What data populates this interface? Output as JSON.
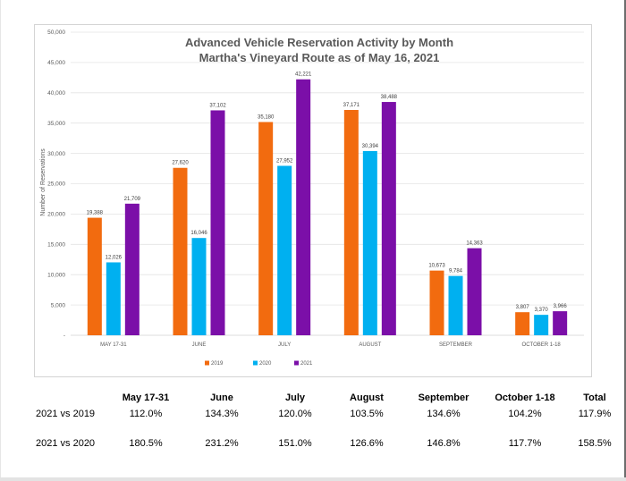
{
  "chart_data": {
    "type": "bar",
    "title": "Advanced Vehicle Reservation Activity by Month",
    "subtitle": "Martha's Vineyard Route as of May 16, 2021",
    "ylabel": "Number of Reservations",
    "xlabel": "",
    "ylim": [
      0,
      50000
    ],
    "yticks": [
      0,
      5000,
      10000,
      15000,
      20000,
      25000,
      30000,
      35000,
      40000,
      45000,
      50000
    ],
    "ytick_labels": [
      "-",
      "5,000",
      "10,000",
      "15,000",
      "20,000",
      "25,000",
      "30,000",
      "35,000",
      "40,000",
      "45,000",
      "50,000"
    ],
    "categories": [
      "MAY 17-31",
      "JUNE",
      "JULY",
      "AUGUST",
      "SEPTEMBER",
      "OCTOBER 1-18"
    ],
    "series": [
      {
        "name": "2019",
        "color": "#f26b0f",
        "values": [
          19388,
          27620,
          35180,
          37171,
          10673,
          3807
        ],
        "labels": [
          "19,388",
          "27,620",
          "35,180",
          "37,171",
          "10,673",
          "3,807"
        ]
      },
      {
        "name": "2020",
        "color": "#00b0f0",
        "values": [
          12026,
          16046,
          27952,
          30394,
          9784,
          3370
        ],
        "labels": [
          "12,026",
          "16,046",
          "27,952",
          "30,394",
          "9,784",
          "3,370"
        ]
      },
      {
        "name": "2021",
        "color": "#7b0fa8",
        "values": [
          21709,
          37102,
          42221,
          38488,
          14363,
          3966
        ],
        "labels": [
          "21,709",
          "37,102",
          "42,221",
          "38,488",
          "14,363",
          "3,966"
        ]
      }
    ],
    "grid": true,
    "legend": "bottom"
  },
  "summary_table": {
    "headers": [
      "",
      "May 17-31",
      "June",
      "July",
      "August",
      "September",
      "October 1-18",
      "Total"
    ],
    "rows": [
      {
        "label": "2021 vs 2019",
        "values": [
          "112.0%",
          "134.3%",
          "120.0%",
          "103.5%",
          "134.6%",
          "104.2%",
          "117.9%"
        ]
      },
      {
        "label": "2021 vs 2020",
        "values": [
          "180.5%",
          "231.2%",
          "151.0%",
          "126.6%",
          "146.8%",
          "117.7%",
          "158.5%"
        ]
      }
    ]
  }
}
